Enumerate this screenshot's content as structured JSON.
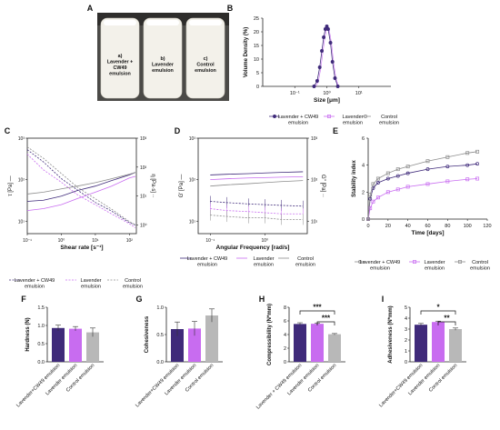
{
  "panel_letters": [
    "A",
    "B",
    "C",
    "D",
    "E",
    "F",
    "G",
    "H",
    "I"
  ],
  "colors": {
    "cw49": "#3f2a7a",
    "lavender": "#c86cf0",
    "control": "#8c8c8c",
    "bar_cw49": "#3f2a7a",
    "bar_lavender": "#c86cf0",
    "bar_control": "#b8b8b8"
  },
  "photo": {
    "bottle_a": [
      "a)",
      "Lavender +",
      "CW49",
      "emulsion"
    ],
    "bottle_b": [
      "b)",
      "Lavender",
      "emulsion"
    ],
    "bottle_c": [
      "c)",
      "Control",
      "emulsion"
    ]
  },
  "legend_cw49": [
    "Lavender + CW49",
    "emulsion"
  ],
  "legend_lavender": [
    "Lavender",
    "emulsion"
  ],
  "legend_control": [
    "Control",
    "emulsion"
  ],
  "bar_labels": [
    "Lavender+CW49 emulsion",
    "Lavender emulsion",
    "Control emulsion"
  ],
  "bar_labels_h": [
    "Lavender + CW49 emulsion",
    "Lavender emulsion",
    "Control emulsion"
  ],
  "chart_data": [
    {
      "id": "B",
      "type": "line",
      "xlabel": "Size [μm]",
      "ylabel": "Volume Density (%)",
      "xscale": "log",
      "xlim": [
        0.01,
        100
      ],
      "ylim": [
        0,
        25
      ],
      "xticks": [
        "10⁻¹",
        "10⁰",
        "10¹"
      ],
      "yticks": [
        "0",
        "5",
        "10",
        "15",
        "20",
        "25"
      ],
      "series": [
        {
          "name": "Lavender + CW49 emulsion",
          "x": [
            0.4,
            0.5,
            0.6,
            0.7,
            0.8,
            0.9,
            1.0,
            1.1,
            1.3,
            1.5,
            1.8,
            2.2
          ],
          "y": [
            0,
            2,
            7,
            13,
            18,
            21,
            22,
            21,
            16,
            9,
            3,
            0
          ]
        }
      ]
    },
    {
      "id": "C",
      "type": "line",
      "xlabel": "Shear rate [s⁻¹]",
      "ylabel": "τ [Pa] —",
      "ylabel_right": "η [Pa·s] ··",
      "xscale": "log",
      "yscale": "log",
      "xticks": [
        "10⁻¹",
        "10⁰",
        "10¹",
        "10²"
      ],
      "yticks": [
        "10¹",
        "10²",
        "10³"
      ],
      "yticks_right": [
        "10⁰",
        "10¹",
        "10²",
        "10³"
      ],
      "series": [
        {
          "name": "Lavender + CW49 emulsion",
          "x": [
            0.1,
            0.3,
            1,
            3,
            10,
            30,
            100,
            150
          ],
          "tau": [
            30,
            32,
            40,
            55,
            70,
            95,
            130,
            150
          ],
          "eta": [
            400,
            150,
            40,
            16,
            6,
            3,
            1.2,
            1
          ]
        },
        {
          "name": "Lavender emulsion",
          "x": [
            0.1,
            0.3,
            1,
            3,
            10,
            30,
            100,
            150
          ],
          "tau": [
            18,
            20,
            25,
            35,
            50,
            70,
            110,
            120
          ],
          "eta": [
            280,
            80,
            30,
            11,
            5,
            2.4,
            1.1,
            0.8
          ]
        },
        {
          "name": "Control emulsion",
          "x": [
            0.1,
            0.3,
            1,
            3,
            10,
            30,
            100,
            150
          ],
          "tau": [
            45,
            50,
            60,
            70,
            85,
            105,
            135,
            150
          ],
          "eta": [
            500,
            200,
            60,
            20,
            8,
            3.5,
            1.3,
            1
          ]
        }
      ]
    },
    {
      "id": "D",
      "type": "line",
      "xlabel": "Angular Frequency [rad/s]",
      "ylabel": "G' [Pa] —",
      "ylabel_right": "G'' [Pa] ··",
      "xscale": "log",
      "yscale": "log",
      "xticks": [
        "10⁻¹",
        "10⁰"
      ],
      "yticks": [
        "10¹",
        "10²",
        "10³"
      ],
      "yticks_right": [
        "10¹",
        "10²",
        "10³"
      ],
      "series": [
        {
          "name": "Lavender + CW49 emulsion",
          "x": [
            0.1,
            0.2,
            0.5,
            1,
            2,
            5
          ],
          "Gp": [
            130,
            135,
            140,
            145,
            150,
            155
          ],
          "Gpp": [
            30,
            28,
            26,
            25,
            24,
            23
          ]
        },
        {
          "name": "Lavender emulsion",
          "x": [
            0.1,
            0.2,
            0.5,
            1,
            2,
            5
          ],
          "Gp": [
            100,
            105,
            110,
            112,
            115,
            118
          ],
          "Gpp": [
            20,
            18,
            17,
            16,
            15,
            15
          ]
        },
        {
          "name": "Control emulsion",
          "x": [
            0.1,
            0.2,
            0.5,
            1,
            2,
            5
          ],
          "Gp": [
            70,
            75,
            80,
            85,
            90,
            95
          ],
          "Gpp": [
            14,
            13,
            12,
            12,
            11,
            11
          ]
        }
      ]
    },
    {
      "id": "E",
      "type": "line",
      "xlabel": "Time [days]",
      "ylabel": "Stability index",
      "xlim": [
        0,
        120
      ],
      "ylim": [
        0,
        6
      ],
      "xticks": [
        "0",
        "20",
        "40",
        "60",
        "80",
        "100",
        "120"
      ],
      "yticks": [
        "0",
        "2",
        "4",
        "6"
      ],
      "series": [
        {
          "name": "Lavender + CW49 emulsion",
          "x": [
            0,
            2,
            5,
            10,
            20,
            30,
            40,
            60,
            80,
            100,
            110
          ],
          "y": [
            0,
            1.5,
            2.3,
            2.7,
            3.0,
            3.2,
            3.4,
            3.7,
            3.9,
            4.0,
            4.1
          ]
        },
        {
          "name": "Lavender emulsion",
          "x": [
            0,
            2,
            5,
            10,
            20,
            30,
            40,
            60,
            80,
            100,
            110
          ],
          "y": [
            0,
            0.8,
            1.3,
            1.6,
            2.0,
            2.2,
            2.4,
            2.6,
            2.8,
            2.95,
            3.0
          ]
        },
        {
          "name": "Control emulsion",
          "x": [
            0,
            2,
            5,
            10,
            20,
            30,
            40,
            60,
            80,
            100,
            110
          ],
          "y": [
            0,
            1.8,
            2.6,
            3.0,
            3.4,
            3.7,
            3.9,
            4.3,
            4.6,
            4.9,
            5.0
          ]
        }
      ]
    },
    {
      "id": "F",
      "type": "bar",
      "ylabel": "Hardness (N)",
      "ylim": [
        0,
        1.5
      ],
      "yticks": [
        "0.0",
        "0.5",
        "1.0",
        "1.5"
      ],
      "values": [
        0.93,
        0.91,
        0.81
      ],
      "errors": [
        0.08,
        0.06,
        0.12
      ]
    },
    {
      "id": "G",
      "type": "bar",
      "ylabel": "Cohesiveness",
      "ylim": [
        0,
        1.0
      ],
      "yticks": [
        "0.0",
        "0.5",
        "1.0"
      ],
      "values": [
        0.6,
        0.61,
        0.85
      ],
      "errors": [
        0.13,
        0.13,
        0.12
      ]
    },
    {
      "id": "H",
      "type": "bar",
      "ylabel": "Compressibility (N*mm)",
      "ylim": [
        0,
        8
      ],
      "yticks": [
        "0",
        "2",
        "4",
        "6",
        "8"
      ],
      "values": [
        5.55,
        5.58,
        4.05
      ],
      "errors": [
        0.18,
        0.12,
        0.1
      ],
      "significance": [
        {
          "from": 0,
          "to": 2,
          "label": "***"
        },
        {
          "from": 1,
          "to": 2,
          "label": "***"
        }
      ]
    },
    {
      "id": "I",
      "type": "bar",
      "ylabel": "Adhesiveness (N*mm)",
      "ylim": [
        0,
        5
      ],
      "yticks": [
        "0",
        "1",
        "2",
        "3",
        "4",
        "5"
      ],
      "values": [
        3.4,
        3.65,
        3.0
      ],
      "errors": [
        0.12,
        0.08,
        0.1
      ],
      "significance": [
        {
          "from": 0,
          "to": 2,
          "label": "*"
        },
        {
          "from": 1,
          "to": 2,
          "label": "**"
        }
      ]
    }
  ]
}
